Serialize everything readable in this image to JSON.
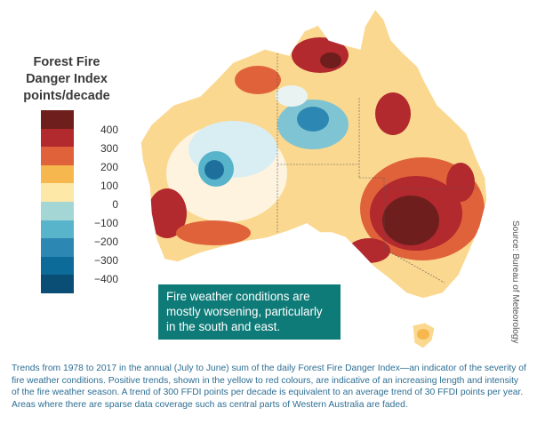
{
  "legend": {
    "title_lines": [
      "Forest Fire",
      "Danger Index",
      "points/decade"
    ],
    "colors": [
      "#6e1f1d",
      "#b2292e",
      "#e0623a",
      "#f6b74f",
      "#fde8a8",
      "#a4d6d6",
      "#57b4cb",
      "#2d87b3",
      "#0d6b9a",
      "#0b4e75"
    ],
    "tick_labels": [
      "400",
      "300",
      "200",
      "100",
      "0",
      "−100",
      "−200",
      "−300",
      "−400"
    ]
  },
  "callout": {
    "text": "Fire weather conditions are mostly worsening, particularly in the south and east."
  },
  "source": "Source: Bureau of Meteorology",
  "caption": "Trends from 1978 to 2017 in the annual (July to June) sum of the daily Forest Fire Danger Index—an indicator of the severity of fire weather conditions. Positive trends, shown in the yellow to red colours, are indicative of an increasing length and intensity of the fire weather season. A trend of 300 FFDI points per decade is equivalent to an average trend of 30 FFDI points per year. Areas where there are sparse data coverage such as central parts of Western Australia are faded."
}
